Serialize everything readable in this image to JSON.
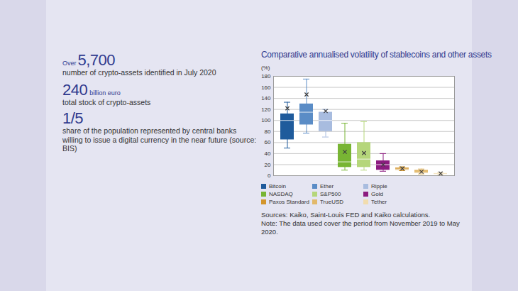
{
  "stats": [
    {
      "prefix": "Over",
      "figure": "5,700",
      "text": "number of crypto-assets identified in July 2020"
    },
    {
      "figure": "240",
      "unit": "billion euro",
      "text": "total stock of crypto-assets"
    },
    {
      "figure": "1/5",
      "text": "share of the population represented by central banks willing to issue a digital currency in the near future (source: BIS)"
    }
  ],
  "chart_data": {
    "type": "box",
    "title": "Comparative annualised volatility of stablecoins and other assets",
    "y_label": "(%)",
    "ylim": [
      0,
      180
    ],
    "yticks": [
      0,
      20,
      40,
      60,
      80,
      100,
      120,
      140,
      160,
      180
    ],
    "grid": true,
    "legend": "bottom",
    "tick_labels": "y",
    "marker": "x",
    "boxes": [
      {
        "name": "Bitcoin",
        "color": "#1f5b9c",
        "min": 50,
        "q1": 65,
        "median": 100,
        "q3": 112,
        "max": 133,
        "mean": 122
      },
      {
        "name": "Ether",
        "color": "#5a8cc6",
        "min": 77,
        "q1": 92,
        "median": 115,
        "q3": 130,
        "max": 175,
        "mean": 147
      },
      {
        "name": "Ripple",
        "color": "#a8bcdf",
        "min": 70,
        "q1": 80,
        "median": 100,
        "q3": 115,
        "max": 120,
        "mean": 117
      },
      {
        "name": "NASDAQ",
        "color": "#78b534",
        "min": 10,
        "q1": 15,
        "median": 25,
        "q3": 57,
        "max": 95,
        "mean": 43
      },
      {
        "name": "S&P500",
        "color": "#b5d67a",
        "min": 10,
        "q1": 15,
        "median": 30,
        "q3": 60,
        "max": 98,
        "mean": 41
      },
      {
        "name": "Gold",
        "color": "#8c1c80",
        "min": 8,
        "q1": 10,
        "median": 20,
        "q3": 27,
        "max": 40,
        "mean": 20
      },
      {
        "name": "Paxos Standard",
        "color": "#d3952b",
        "min": 9,
        "q1": 10,
        "median": 12,
        "q3": 14,
        "max": 16,
        "mean": 13
      },
      {
        "name": "TrueUSD",
        "color": "#e2b96b",
        "min": 3,
        "q1": 4,
        "median": 6,
        "q3": 10,
        "max": 12,
        "mean": 7
      },
      {
        "name": "Tether",
        "color": "#f1dcae",
        "min": 1,
        "q1": 2,
        "median": 3,
        "q3": 4,
        "max": 6,
        "mean": 4
      }
    ],
    "sources": "Sources: Kaiko, Saint-Louis FED and Kaiko calculations.",
    "note": "Note: The data used cover the period from November 2019 to May 2020."
  }
}
